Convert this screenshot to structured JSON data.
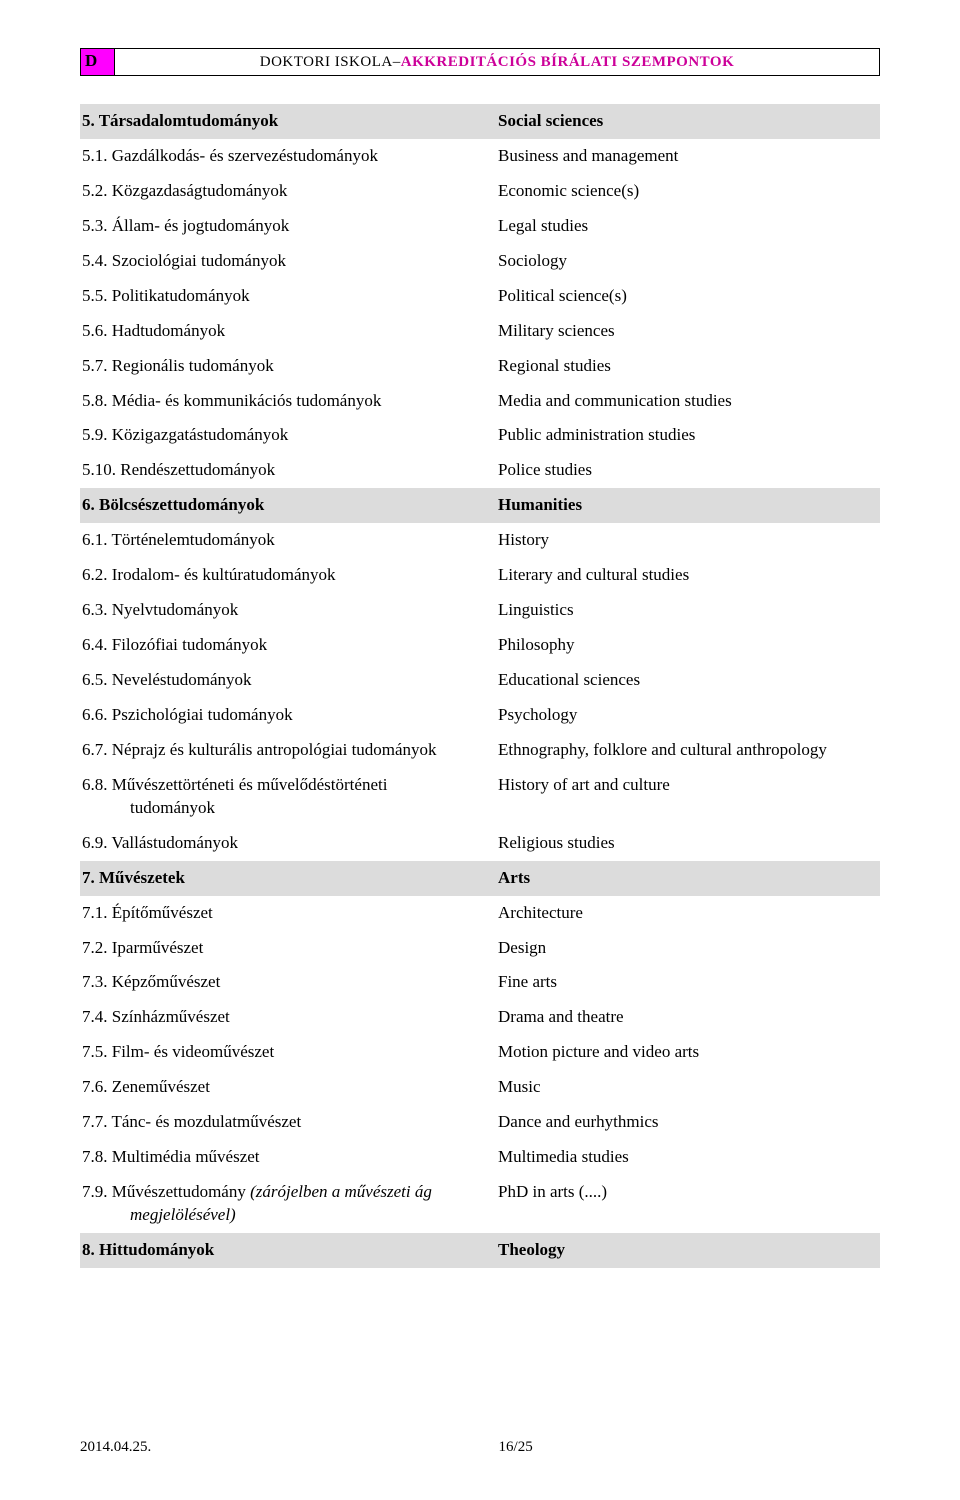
{
  "header": {
    "badge": "D",
    "title_black": "DOKTORI ISKOLA",
    "title_sep": " – ",
    "title_magenta": "AKKREDITÁCIÓS BÍRÁLATI SZEMPONTOK"
  },
  "colors": {
    "badge_bg": "#ff00ff",
    "section_bg": "#dcdcdc",
    "magenta_text": "#cc0099"
  },
  "rows": [
    {
      "section": true,
      "left": "5. Társadalomtudományok",
      "right": "Social sciences"
    },
    {
      "section": false,
      "left": "5.1. Gazdálkodás- és szervezéstudományok",
      "right": "Business and management"
    },
    {
      "section": false,
      "left": "5.2. Közgazdaságtudományok",
      "right": "Economic science(s)"
    },
    {
      "section": false,
      "left": "5.3. Állam- és jogtudományok",
      "right": "Legal studies"
    },
    {
      "section": false,
      "left": "5.4. Szociológiai tudományok",
      "right": "Sociology"
    },
    {
      "section": false,
      "left": "5.5. Politikatudományok",
      "right": "Political science(s)"
    },
    {
      "section": false,
      "left": "5.6. Hadtudományok",
      "right": "Military sciences"
    },
    {
      "section": false,
      "left": "5.7. Regionális tudományok",
      "right": "Regional studies"
    },
    {
      "section": false,
      "left": "5.8. Média- és kommunikációs tudományok",
      "right": "Media and communication studies"
    },
    {
      "section": false,
      "left": "5.9. Közigazgatástudományok",
      "right": "Public administration studies"
    },
    {
      "section": false,
      "left": "5.10. Rendészettudományok",
      "right": "Police studies"
    },
    {
      "section": true,
      "left": "6. Bölcsészettudományok",
      "right": "Humanities"
    },
    {
      "section": false,
      "left": "6.1. Történelemtudományok",
      "right": "History"
    },
    {
      "section": false,
      "left": "6.2. Irodalom- és kultúratudományok",
      "right": "Literary and cultural studies"
    },
    {
      "section": false,
      "left": "6.3. Nyelvtudományok",
      "right": "Linguistics"
    },
    {
      "section": false,
      "left": "6.4. Filozófiai tudományok",
      "right": "Philosophy"
    },
    {
      "section": false,
      "left": "6.5. Neveléstudományok",
      "right": "Educational sciences"
    },
    {
      "section": false,
      "left": "6.6. Pszichológiai tudományok",
      "right": "Psychology"
    },
    {
      "section": false,
      "left": "6.7. Néprajz és kulturális antropológiai tudományok",
      "right": "Ethnography, folklore and cultural anthropology"
    },
    {
      "section": false,
      "left_main": "6.8. Művészettörténeti és művelődéstörténeti",
      "left_sub": "tudományok",
      "right": "History of art and culture"
    },
    {
      "section": false,
      "left": "6.9. Vallástudományok",
      "right": "Religious studies"
    },
    {
      "section": true,
      "left": "7. Művészetek",
      "right": "Arts"
    },
    {
      "section": false,
      "left": "7.1. Építőművészet",
      "right": "Architecture"
    },
    {
      "section": false,
      "left": "7.2. Iparművészet",
      "right": "Design"
    },
    {
      "section": false,
      "left": "7.3. Képzőművészet",
      "right": "Fine arts"
    },
    {
      "section": false,
      "left": "7.4. Színházművészet",
      "right": "Drama and theatre"
    },
    {
      "section": false,
      "left": "7.5. Film- és videoművészet",
      "right": "Motion picture and video arts"
    },
    {
      "section": false,
      "left": "7.6. Zeneművészet",
      "right": "Music"
    },
    {
      "section": false,
      "left": "7.7. Tánc- és mozdulatművészet",
      "right": "Dance and eurhythmics"
    },
    {
      "section": false,
      "left": "7.8. Multimédia művészet",
      "right": "Multimedia studies"
    },
    {
      "section": false,
      "left_main": "7.9. Művészettudomány ",
      "left_italic": "(zárójelben a művészeti ág",
      "left_sub_italic": "megjelölésével)",
      "right": "PhD in arts (....)"
    },
    {
      "section": true,
      "left": "8. Hittudományok",
      "right": "Theology"
    }
  ],
  "footer": {
    "date": "2014.04.25.",
    "page": "16/25"
  }
}
